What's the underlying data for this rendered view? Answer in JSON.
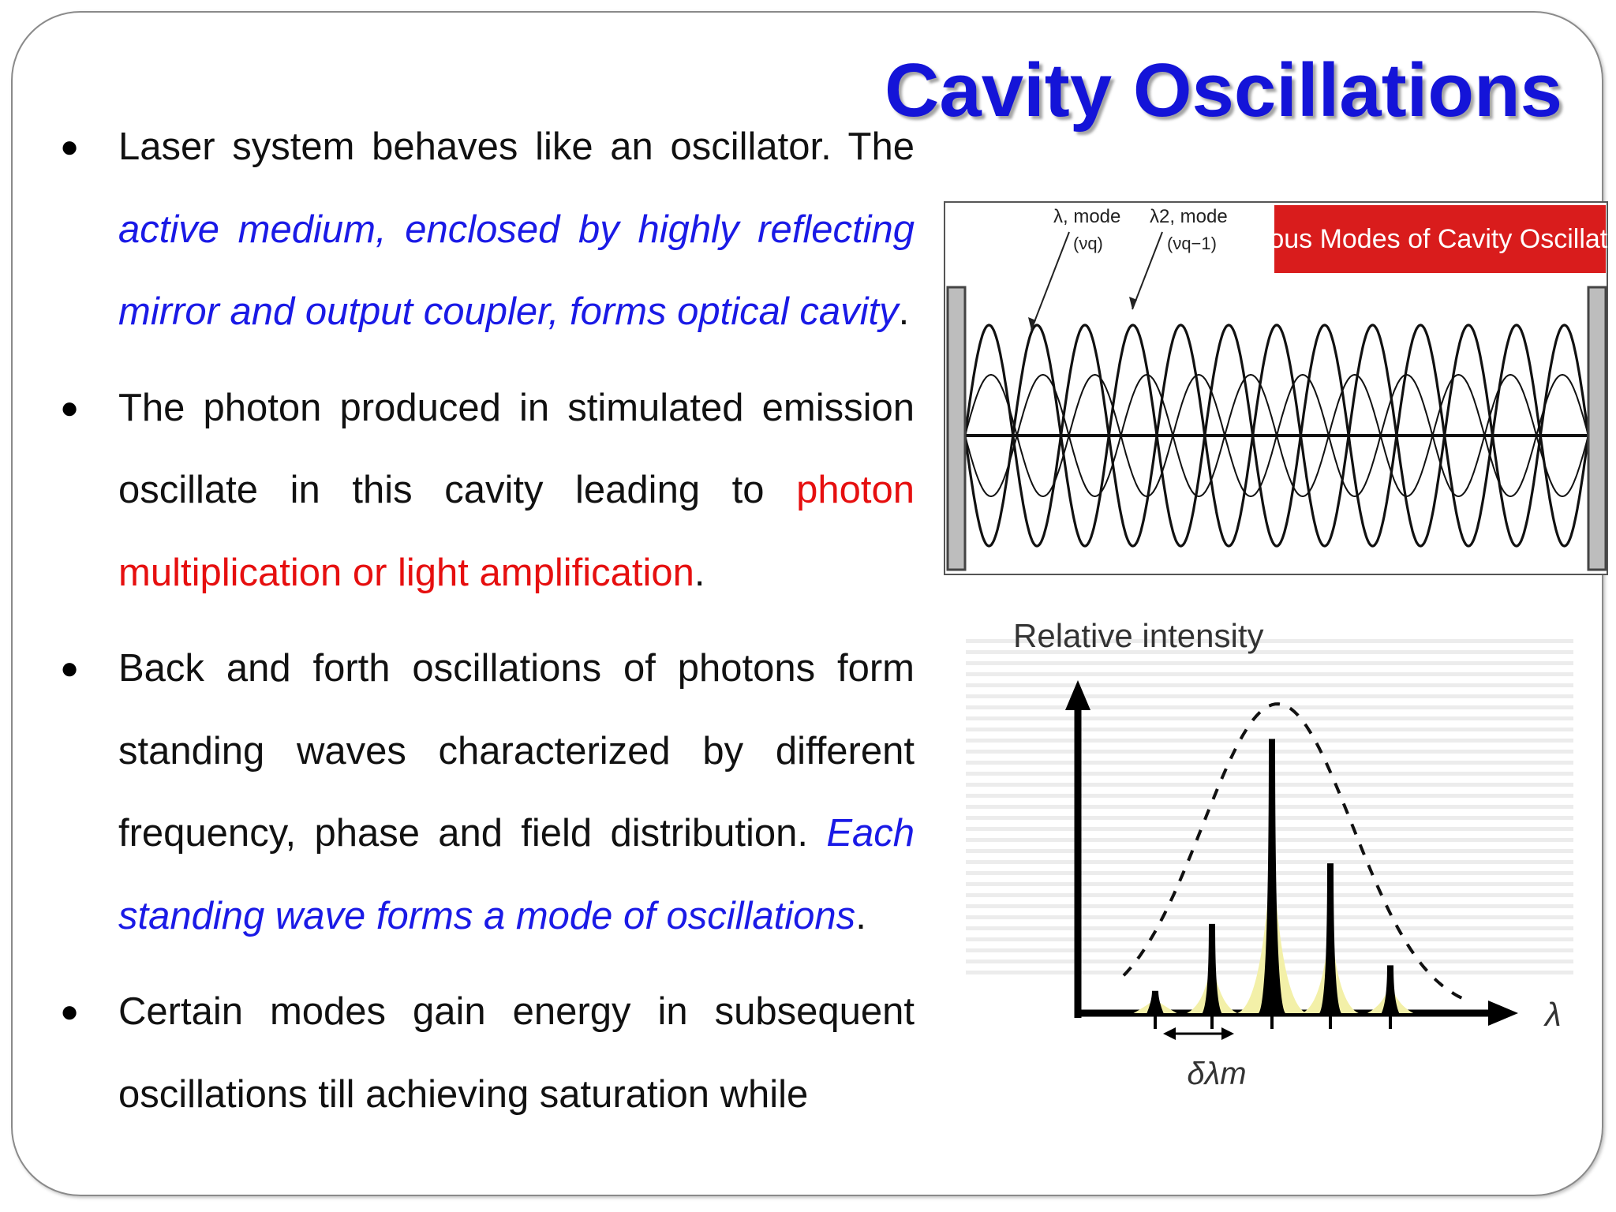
{
  "slide": {
    "title": "Cavity Oscillations"
  },
  "bullets": [
    {
      "parts": [
        {
          "text": "Laser system behaves like an oscillator. The ",
          "style": "normal"
        },
        {
          "text": "active medium, enclosed by highly reflecting mirror and output coupler, forms optical cavity",
          "style": "blue"
        },
        {
          "text": ".",
          "style": "normal"
        }
      ]
    },
    {
      "parts": [
        {
          "text": "The photon produced in stimulated emission oscillate in this cavity leading to ",
          "style": "normal"
        },
        {
          "text": "photon multiplication or light amplification",
          "style": "red"
        },
        {
          "text": ".",
          "style": "normal"
        }
      ]
    },
    {
      "parts": [
        {
          "text": "Back and forth oscillations of photons form standing waves characterized by different frequency, phase and field distribution. ",
          "style": "normal"
        },
        {
          "text": "Each standing wave forms a mode of  oscillations",
          "style": "blue"
        },
        {
          "text": ".",
          "style": "normal"
        }
      ]
    },
    {
      "parts": [
        {
          "text": "Certain modes gain energy in subsequent oscillations till achieving saturation while",
          "style": "normal"
        }
      ]
    }
  ],
  "figure_modes": {
    "banner": "Various Modes of Cavity Oscillations",
    "banner_color": "#d91c1c",
    "mode1_label": "λ, mode",
    "mode1_freq": "(νq)",
    "mode2_label": "λ2, mode",
    "mode2_freq": "(νq−1)"
  },
  "figure_intensity": {
    "ylabel": "Relative intensity",
    "xlabel": "λ",
    "spacing_label": "δλm",
    "peaks_relative": [
      0.07,
      0.28,
      0.86,
      0.47,
      0.15
    ],
    "highlight_color": "#f3f0a8"
  },
  "colors": {
    "title": "#1414d8",
    "blue_text": "#1a1ae6",
    "red_text": "#e60f0f"
  }
}
